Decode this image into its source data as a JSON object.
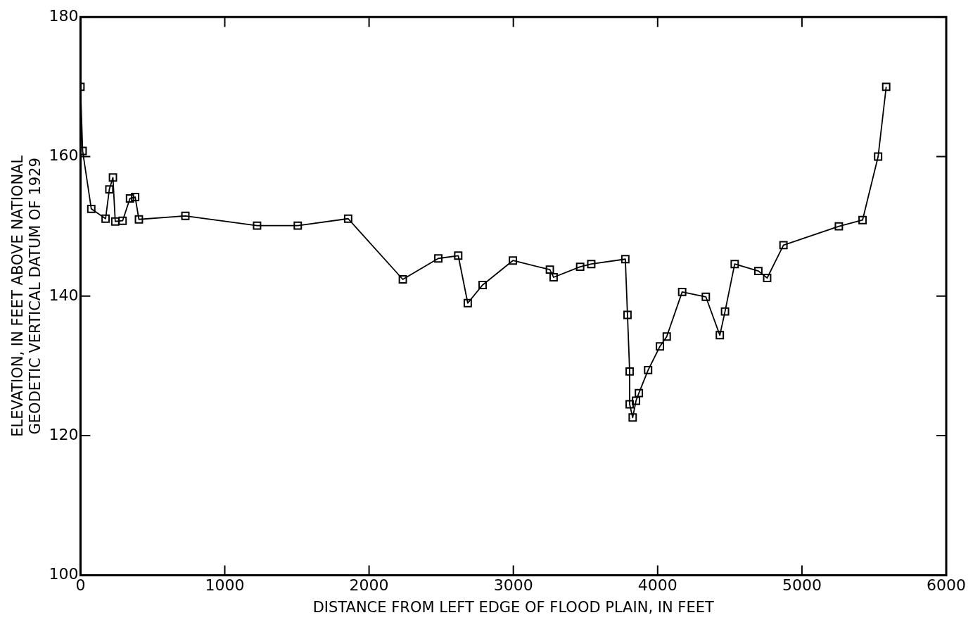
{
  "chart_data": {
    "type": "line",
    "xlabel": "DISTANCE FROM LEFT EDGE OF FLOOD PLAIN, IN FEET",
    "ylabel": "ELEVATION, IN FEET ABOVE NATIONAL\nGEODETIC VERTICAL DATUM OF 1929",
    "x": [
      0,
      15,
      75,
      174,
      200,
      225,
      241,
      292,
      343,
      379,
      405,
      727,
      1224,
      1506,
      1855,
      2234,
      2480,
      2618,
      2684,
      2787,
      2997,
      3253,
      3279,
      3463,
      3540,
      3776,
      3791,
      3806,
      3806,
      3827,
      3850,
      3870,
      3934,
      4016,
      4063,
      4170,
      4334,
      4431,
      4467,
      4534,
      4698,
      4759,
      4872,
      5256,
      5420,
      5528,
      5584
    ],
    "series": [
      {
        "color": "#000000",
        "values": [
          170,
          160.8,
          152.5,
          151.1,
          155.3,
          157.0,
          150.7,
          150.8,
          154.0,
          154.2,
          151.0,
          151.5,
          150.1,
          150.1,
          151.1,
          142.4,
          145.4,
          145.8,
          139.0,
          141.6,
          145.1,
          143.8,
          142.7,
          144.2,
          144.6,
          145.3,
          137.3,
          129.2,
          124.5,
          122.6,
          125.0,
          126.1,
          129.4,
          132.8,
          134.2,
          140.6,
          139.9,
          134.4,
          137.8,
          144.6,
          143.6,
          142.6,
          147.3,
          150.0,
          150.9,
          160.0,
          170.0
        ]
      }
    ],
    "xlim": [
      0,
      6000
    ],
    "xticks": [
      0,
      1000,
      2000,
      3000,
      4000,
      5000,
      6000
    ],
    "ylim": [
      100,
      180
    ],
    "yticks": [
      100,
      120,
      140,
      160,
      180
    ],
    "grid": false,
    "legend": false,
    "marker": "square",
    "line_style": "solid"
  }
}
